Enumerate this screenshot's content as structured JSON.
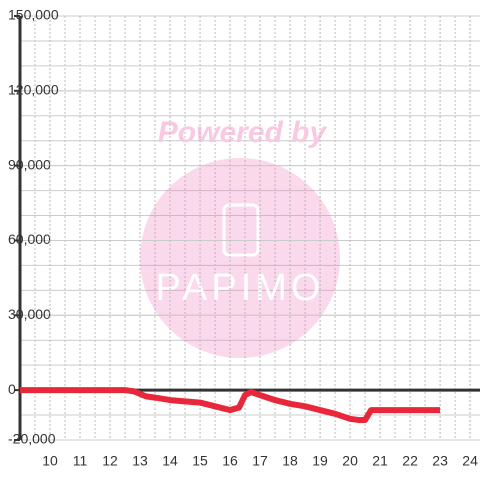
{
  "chart_data": {
    "type": "line",
    "x": [
      9,
      12.5,
      12.8,
      13,
      13.2,
      13.5,
      14,
      14.5,
      15,
      15.5,
      16,
      16.3,
      16.5,
      16.7,
      17,
      17.5,
      18,
      18.5,
      19,
      19.5,
      20,
      20.3,
      20.5,
      20.7,
      21,
      22,
      23
    ],
    "series": [
      {
        "name": null,
        "color": "#e8273a",
        "values": [
          0,
          0,
          -500,
          -1500,
          -2500,
          -3000,
          -4000,
          -4500,
          -5000,
          -6500,
          -8000,
          -7000,
          -2000,
          -800,
          -2000,
          -4000,
          -5500,
          -6500,
          -8000,
          -9500,
          -11500,
          -12000,
          -12000,
          -8000,
          -8000,
          -8000,
          -8000
        ]
      }
    ],
    "xlim": [
      9,
      24.33
    ],
    "xticks": [
      10,
      11,
      12,
      13,
      14,
      15,
      16,
      17,
      18,
      19,
      20,
      21,
      22,
      23,
      24
    ],
    "ylim": [
      -20000,
      150000
    ],
    "yticks": [
      {
        "value": -20000,
        "label": "-20,000"
      },
      0,
      {
        "value": 30000,
        "label": "30,000"
      },
      {
        "value": 60000,
        "label": "60,000"
      },
      {
        "value": 90000,
        "label": "90,000"
      },
      {
        "value": 120000,
        "label": "120,000"
      },
      {
        "value": 150000,
        "label": "150,000"
      }
    ],
    "grid": true,
    "annotations": [
      "Powered by",
      "PAPIMO"
    ]
  }
}
